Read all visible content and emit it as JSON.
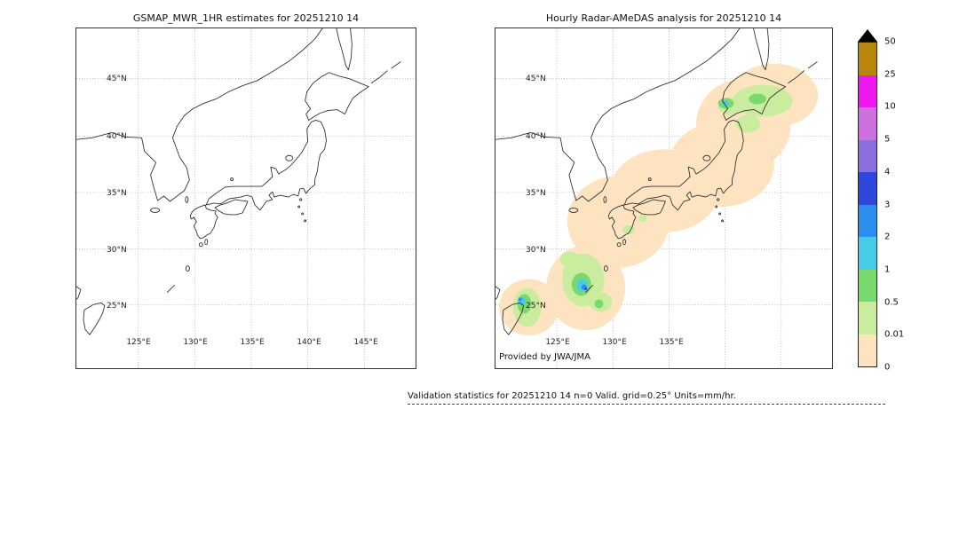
{
  "figure": {
    "background": "#ffffff",
    "left_panel": {
      "title": "GSMAP_MWR_1HR estimates for 20251210 14"
    },
    "right_panel": {
      "title": "Hourly Radar-AMeDAS analysis for 20251210 14",
      "credit": "Provided by JWA/JMA"
    },
    "caption": "Validation statistics for 20251210 14  n=0 Valid. grid=0.25° Units=mm/hr."
  },
  "axes": {
    "lat_ticks": [
      "45°N",
      "40°N",
      "35°N",
      "30°N",
      "25°N"
    ],
    "lon_ticks": [
      "125°E",
      "130°E",
      "135°E",
      "140°E",
      "145°E"
    ],
    "lon_ticks_right": [
      "125°E",
      "130°E",
      "135°E"
    ]
  },
  "colorbar": {
    "units": "mm/hr",
    "overflow_color": "#000000",
    "labels": [
      "50",
      "25",
      "10",
      "5",
      "4",
      "3",
      "2",
      "1",
      "0.5",
      "0.01",
      "0"
    ],
    "colors": [
      "#b8860b",
      "#ee18ee",
      "#cc70dd",
      "#8d6fdb",
      "#2e48dd",
      "#2d8fed",
      "#45cde8",
      "#79d96c",
      "#c9ec9e",
      "#fde3c0"
    ]
  },
  "chart_data": {
    "type": "heatmap",
    "title": "GSMaP MWR 1HR vs Hourly Radar-AMeDAS precipitation validation",
    "datetime": "20251210 14",
    "units": "mm/hr",
    "grid_resolution_deg": 0.25,
    "n_valid_points": 0,
    "map_extent": {
      "lon": [
        "~120E",
        "~149E"
      ],
      "lat": [
        "~20N",
        "~49N"
      ]
    },
    "colorbar": {
      "boundaries_mm_hr": [
        0,
        0.01,
        0.5,
        1,
        2,
        3,
        4,
        5,
        10,
        25,
        50
      ],
      "colors_low_to_high": [
        "#fde3c0",
        "#c9ec9e",
        "#79d96c",
        "#45cde8",
        "#2d8fed",
        "#2e48dd",
        "#8d6fdb",
        "#cc70dd",
        "#ee18ee",
        "#b8860b"
      ],
      "overflow_above_50": "#000000",
      "legend_position": "right vertical"
    },
    "panels": [
      {
        "title": "GSMAP_MWR_1HR estimates for 20251210 14",
        "precipitation": "no data shown (blank map, coastlines and graticule only)"
      },
      {
        "title": "Hourly Radar-AMeDAS analysis for 20251210 14",
        "precipitation_regions": [
          {
            "area": "broad band along Japanese archipelago from Kyushu to Hokkaido",
            "intensity_mm_hr": "0–0.01 (pale orange halo)"
          },
          {
            "area": "southern Kyushu / Amami area (~129–131E, 27–31N)",
            "intensity_mm_hr": "0.01–1 green patches with 1–5 cyan/blue cores"
          },
          {
            "area": "southwest corner near Okinawa (~125–127E, 25–27N)",
            "intensity_mm_hr": "0.01–1 green patch with 1–4 cyan core"
          },
          {
            "area": "central/western Hokkaido (~140–145E, 43–45N)",
            "intensity_mm_hr": "0.01–2 green with small cyan spot"
          }
        ]
      }
    ],
    "grid_on": true,
    "lat_ticks_deg_n": [
      45,
      40,
      35,
      30,
      25
    ],
    "lon_ticks_deg_e": [
      125,
      130,
      135,
      140,
      145
    ]
  }
}
